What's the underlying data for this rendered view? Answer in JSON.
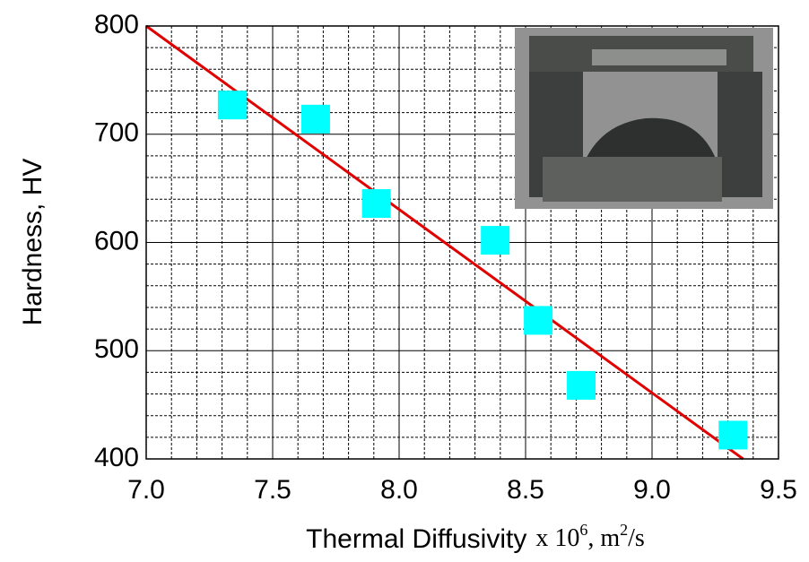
{
  "chart_data": {
    "type": "scatter",
    "xlabel": "Thermal Diffusivity",
    "xlabel_unit": [
      "x 10",
      "6",
      ", m",
      "2",
      "/s"
    ],
    "ylabel": "Hardness, HV",
    "x": [
      7.34,
      7.67,
      7.91,
      8.38,
      8.55,
      8.72,
      9.32
    ],
    "values": [
      727,
      714,
      636,
      602,
      528,
      468,
      422
    ],
    "color": "#00ffff",
    "fit_line": {
      "x": [
        7.0,
        9.36
      ],
      "values": [
        800,
        400
      ],
      "color": "#e00000"
    },
    "xlim": [
      7.0,
      9.5
    ],
    "xticks": [
      {
        "value": 7,
        "label": "7.0"
      },
      7.5,
      {
        "value": 8,
        "label": "8.0"
      },
      8.5,
      {
        "value": 9,
        "label": "9.0"
      },
      9.5
    ],
    "ylim": [
      400,
      800
    ],
    "yticks": [
      400,
      500,
      600,
      700,
      800
    ],
    "grid": true,
    "minor_grid_divisions": 5
  }
}
